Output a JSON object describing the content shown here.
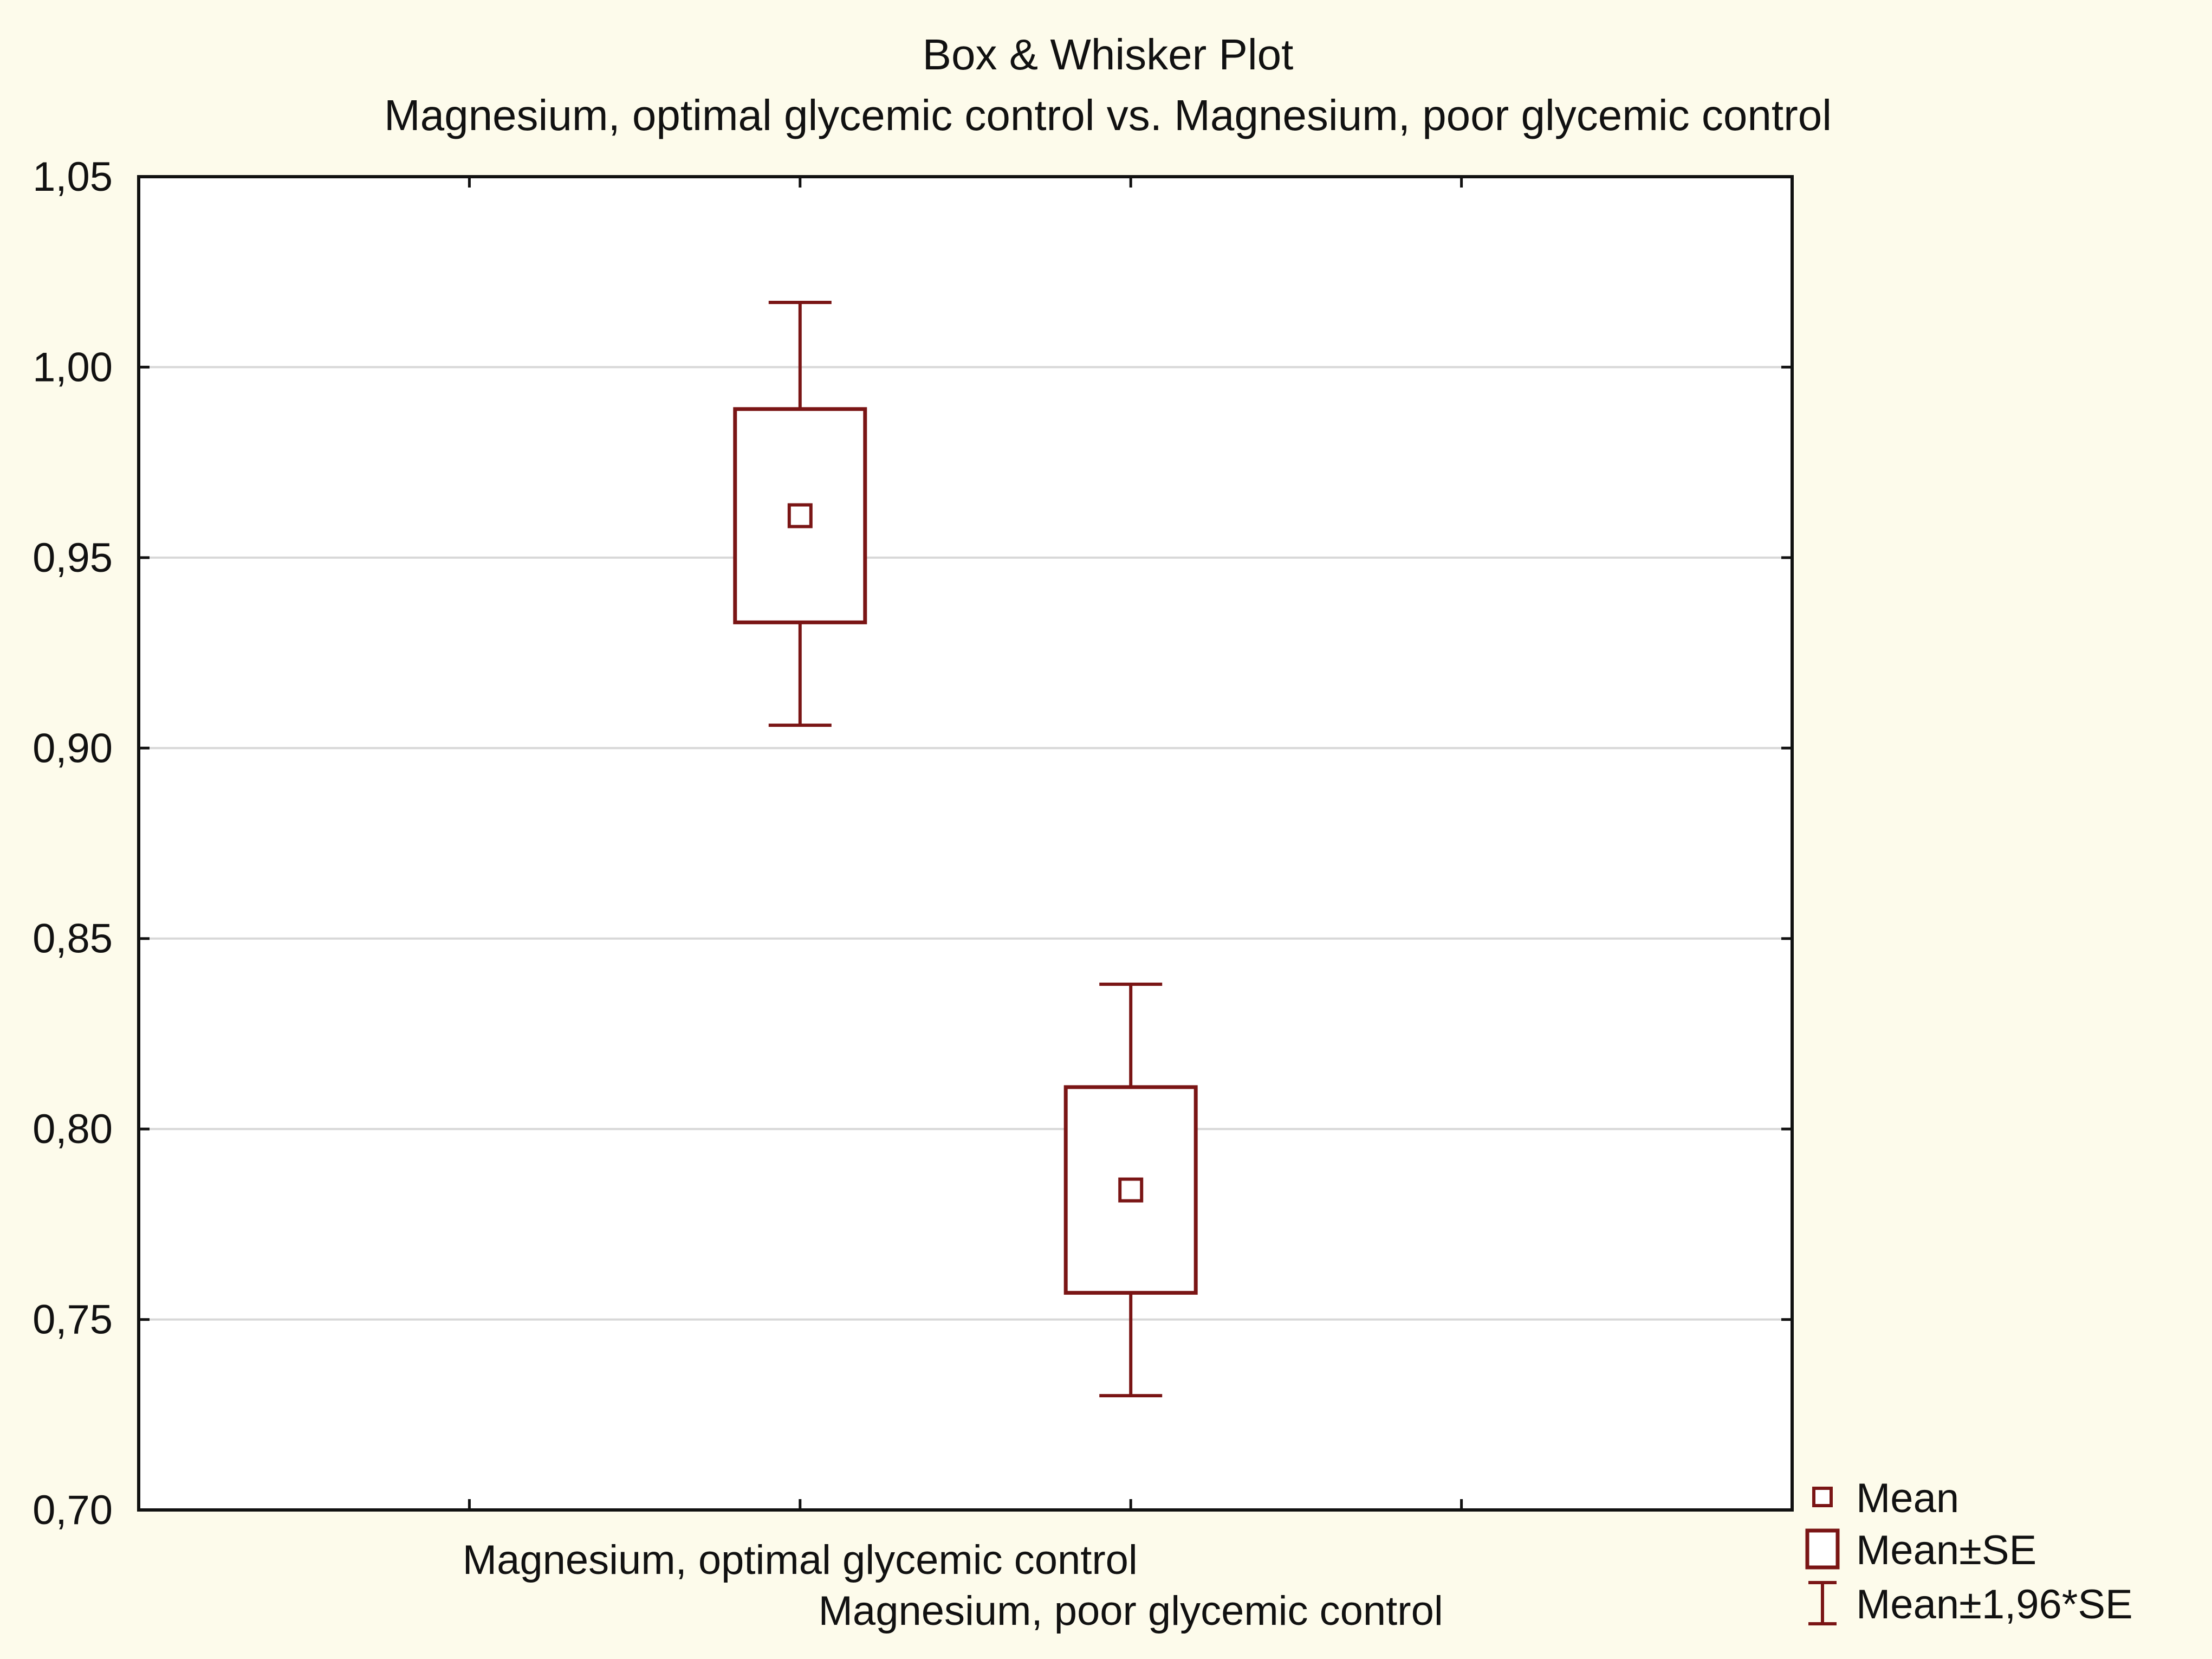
{
  "chart_data": {
    "type": "box",
    "title": "Box & Whisker Plot",
    "subtitle": "Magnesium, optimal glycemic control vs. Magnesium, poor glycemic control",
    "xlabel": "",
    "ylabel": "",
    "ylim": [
      0.7,
      1.05
    ],
    "yticks": [
      "0,70",
      "0,75",
      "0,80",
      "0,85",
      "0,90",
      "0,95",
      "1,00",
      "1,05"
    ],
    "ytick_values": [
      0.7,
      0.75,
      0.8,
      0.85,
      0.9,
      0.95,
      1.0,
      1.05
    ],
    "grid": true,
    "legend_position": "bottom-right",
    "categories": [
      "Magnesium, optimal glycemic control",
      "Magnesium, poor glycemic control"
    ],
    "series": [
      {
        "category": "Magnesium, optimal glycemic control",
        "mean": 0.961,
        "mean_minus_se": 0.933,
        "mean_plus_se": 0.989,
        "mean_minus_196se": 0.906,
        "mean_plus_196se": 1.017
      },
      {
        "category": "Magnesium, poor glycemic control",
        "mean": 0.784,
        "mean_minus_se": 0.757,
        "mean_plus_se": 0.811,
        "mean_minus_196se": 0.73,
        "mean_plus_196se": 0.838
      }
    ],
    "legend": [
      {
        "symbol": "small-square",
        "label": "Mean"
      },
      {
        "symbol": "box",
        "label": "Mean±SE"
      },
      {
        "symbol": "whisker",
        "label": "Mean±1,96*SE"
      }
    ],
    "colors": {
      "marks": "#7a1515",
      "axis": "#111111",
      "grid": "#d8d8d8",
      "background": "#fdfbeb",
      "plot_background": "#ffffff"
    }
  }
}
